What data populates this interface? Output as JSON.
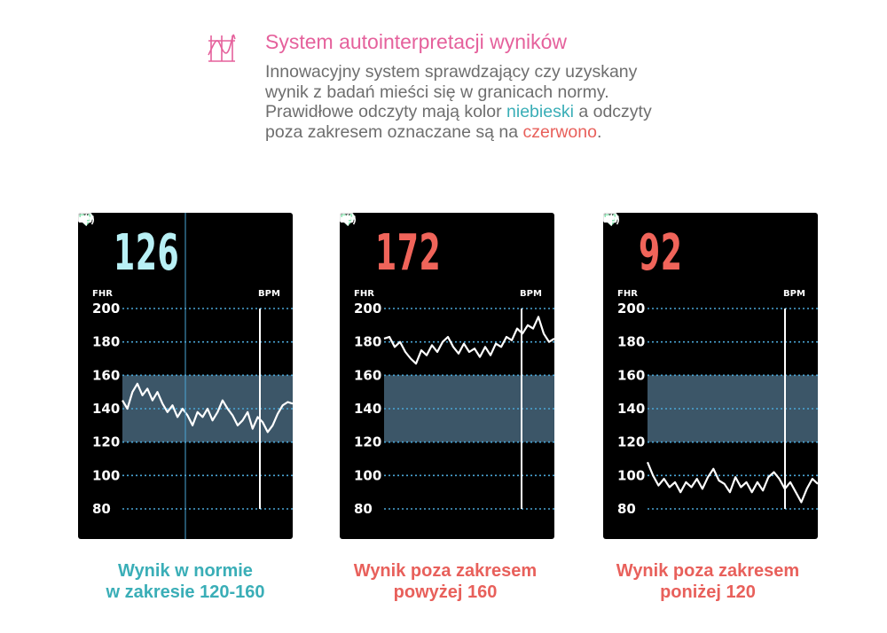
{
  "header": {
    "icon": "chart-logo-icon",
    "title": "System autointerpretacji wyników",
    "desc_line1": "Innowacyjny system sprawdzający czy uzyskany",
    "desc_line2": "wynik z badań mieści się w granicach normy.",
    "desc_line3a": "Prawidłowe odczyty mają kolor ",
    "desc_blue": "niebieski",
    "desc_line3b": " a odczyty",
    "desc_line4a": "poza zakresem oznaczane są na ",
    "desc_red": "czerwono",
    "desc_line4b": "."
  },
  "colors": {
    "accent_pink": "#e5619c",
    "normal_blue": "#3aaeb7",
    "alert_red": "#e8605b",
    "value_blue": "#b8f0f5",
    "value_red": "#f0645a",
    "band": "#3c5668",
    "heart_green": "#8ee6b4"
  },
  "panels": [
    {
      "value": "126",
      "status": "normal",
      "fhr_label": "FHR",
      "bpm_label": "BPM",
      "caption_line1": "Wynik w normie",
      "caption_line2": "w zakresie 120-160"
    },
    {
      "value": "172",
      "status": "high",
      "fhr_label": "FHR",
      "bpm_label": "BPM",
      "caption_line1": "Wynik poza zakresem",
      "caption_line2": "powyżej 160"
    },
    {
      "value": "92",
      "status": "low",
      "fhr_label": "FHR",
      "bpm_label": "BPM",
      "caption_line1": "Wynik poza zakresem",
      "caption_line2": "poniżej 120"
    }
  ],
  "chart_data": [
    {
      "type": "line",
      "ylim": [
        80,
        200
      ],
      "y_ticks": [
        "200",
        "180",
        "160",
        "140",
        "120",
        "100",
        "80"
      ],
      "band": [
        120,
        160
      ],
      "values": [
        145,
        140,
        150,
        155,
        148,
        152,
        145,
        150,
        143,
        138,
        142,
        135,
        140,
        136,
        130,
        138,
        135,
        140,
        133,
        138,
        145,
        140,
        136,
        130,
        133,
        138,
        128,
        135,
        132,
        126,
        130,
        137,
        142,
        144,
        143
      ]
    },
    {
      "type": "line",
      "ylim": [
        80,
        200
      ],
      "y_ticks": [
        "200",
        "180",
        "160",
        "140",
        "120",
        "100",
        "80"
      ],
      "band": [
        120,
        160
      ],
      "values": [
        182,
        183,
        177,
        180,
        174,
        170,
        167,
        175,
        172,
        178,
        174,
        180,
        183,
        177,
        173,
        179,
        174,
        176,
        171,
        177,
        172,
        179,
        177,
        183,
        181,
        188,
        185,
        190,
        188,
        195,
        185,
        180,
        182
      ]
    },
    {
      "type": "line",
      "ylim": [
        80,
        200
      ],
      "y_ticks": [
        "200",
        "180",
        "160",
        "140",
        "120",
        "100",
        "80"
      ],
      "band": [
        120,
        160
      ],
      "values": [
        108,
        100,
        94,
        98,
        93,
        96,
        90,
        96,
        93,
        98,
        92,
        99,
        104,
        97,
        95,
        90,
        99,
        93,
        96,
        90,
        96,
        91,
        99,
        102,
        98,
        92,
        96,
        90,
        84,
        92,
        98,
        95
      ]
    }
  ]
}
